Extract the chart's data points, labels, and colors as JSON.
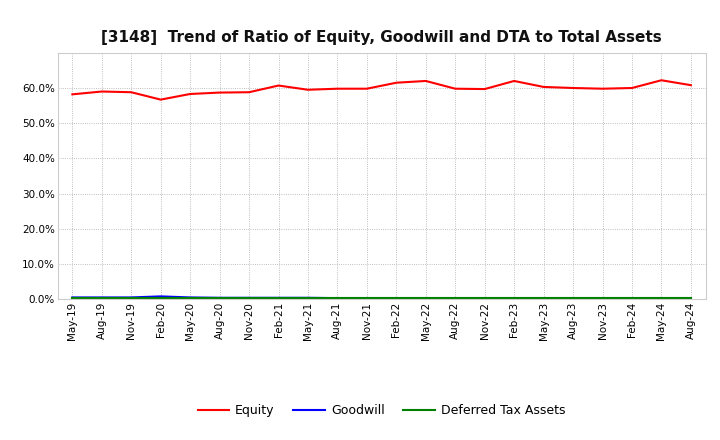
{
  "title": "[3148]  Trend of Ratio of Equity, Goodwill and DTA to Total Assets",
  "xlabel": "",
  "ylabel": "",
  "ylim": [
    0.0,
    0.7
  ],
  "yticks": [
    0.0,
    0.1,
    0.2,
    0.3,
    0.4,
    0.5,
    0.6
  ],
  "x_labels": [
    "May-19",
    "Aug-19",
    "Nov-19",
    "Feb-20",
    "May-20",
    "Aug-20",
    "Nov-20",
    "Feb-21",
    "May-21",
    "Aug-21",
    "Nov-21",
    "Feb-22",
    "May-22",
    "Aug-22",
    "Nov-22",
    "Feb-23",
    "May-23",
    "Aug-23",
    "Nov-23",
    "Feb-24",
    "May-24",
    "Aug-24"
  ],
  "equity": [
    0.582,
    0.59,
    0.588,
    0.567,
    0.583,
    0.587,
    0.588,
    0.607,
    0.595,
    0.598,
    0.598,
    0.615,
    0.62,
    0.598,
    0.597,
    0.62,
    0.603,
    0.6,
    0.598,
    0.6,
    0.622,
    0.608
  ],
  "goodwill": [
    0.005,
    0.005,
    0.005,
    0.008,
    0.005,
    0.004,
    0.004,
    0.004,
    0.004,
    0.003,
    0.003,
    0.003,
    0.003,
    0.003,
    0.003,
    0.003,
    0.003,
    0.003,
    0.003,
    0.003,
    0.003,
    0.003
  ],
  "dta": [
    0.002,
    0.002,
    0.002,
    0.002,
    0.002,
    0.002,
    0.002,
    0.002,
    0.002,
    0.002,
    0.002,
    0.002,
    0.002,
    0.002,
    0.002,
    0.002,
    0.002,
    0.002,
    0.002,
    0.002,
    0.002,
    0.002
  ],
  "equity_color": "#ff0000",
  "goodwill_color": "#0000ff",
  "dta_color": "#008000",
  "background_color": "#ffffff",
  "plot_bg_color": "#ffffff",
  "grid_color": "#aaaaaa",
  "title_fontsize": 11,
  "tick_fontsize": 7.5,
  "legend_fontsize": 9,
  "line_width": 1.5
}
